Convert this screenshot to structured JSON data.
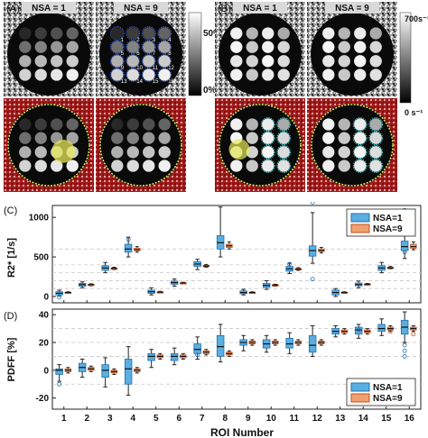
{
  "top": {
    "panel_a": {
      "label": "(A)",
      "title_left": "NSA = 1",
      "title_right": "NSA = 9",
      "cbar_max": "50%",
      "cbar_min": "0%",
      "roi_label": "ROI",
      "roi_numbers": [
        "1",
        "2",
        "3",
        "4",
        "5",
        "6",
        "7",
        "8",
        "9",
        "10",
        "11",
        "12",
        "13",
        "14",
        "15",
        "16"
      ]
    },
    "panel_b": {
      "label": "(B)",
      "title_left": "NSA = 1",
      "title_right": "NSA = 9",
      "cbar_max": "700s⁻¹",
      "cbar_min": "0 s⁻¹"
    }
  },
  "colors": {
    "nsa1_fill": "#5aaee0",
    "nsa1_edge": "#1f6fb0",
    "nsa9_fill": "#f0a070",
    "nsa9_edge": "#c0501f",
    "mask_red": "#a31a1a",
    "highlight_yellow": "#e5e85a",
    "highlight_cyan": "#3fc7c7"
  },
  "chart_data": [
    {
      "type": "box",
      "panel_label": "(C)",
      "xlabel": "",
      "ylabel": "R2* [1/s]",
      "ylim": [
        -80,
        1150
      ],
      "yticks": [
        0,
        500,
        1000
      ],
      "dashed_lines": [
        100,
        200,
        300,
        400,
        600
      ],
      "categories": [
        "1",
        "2",
        "3",
        "4",
        "5",
        "6",
        "7",
        "8",
        "9",
        "10",
        "11",
        "12",
        "13",
        "14",
        "15",
        "16"
      ],
      "legend": [
        "NSA=1",
        "NSA=9"
      ],
      "legend_position": "top-right",
      "series": [
        {
          "name": "NSA=1",
          "whisker_low": [
            5,
            110,
            300,
            500,
            20,
            130,
            340,
            500,
            20,
            90,
            290,
            420,
            0,
            110,
            300,
            480
          ],
          "q1": [
            20,
            130,
            330,
            560,
            40,
            155,
            380,
            600,
            35,
            115,
            320,
            510,
            20,
            135,
            330,
            580
          ],
          "median": [
            40,
            150,
            360,
            600,
            60,
            175,
            410,
            680,
            50,
            140,
            350,
            580,
            50,
            150,
            360,
            630
          ],
          "q3": [
            60,
            165,
            390,
            660,
            80,
            195,
            440,
            770,
            70,
            165,
            380,
            640,
            80,
            170,
            390,
            700
          ],
          "whisker_high": [
            80,
            185,
            430,
            750,
            110,
            220,
            470,
            1130,
            90,
            200,
            420,
            1060,
            100,
            195,
            430,
            1080
          ],
          "outliers": [
            [
              0,
              -10
            ],
            [
              3,
              720
            ],
            [
              10,
              410
            ],
            [
              11,
              1190
            ],
            [
              11,
              220
            ],
            [
              15,
              560
            ],
            [
              15,
              1090
            ]
          ]
        },
        {
          "name": "NSA=9",
          "whisker_low": [
            40,
            135,
            340,
            560,
            45,
            160,
            370,
            600,
            40,
            130,
            330,
            550,
            40,
            145,
            350,
            590
          ],
          "q1": [
            45,
            145,
            350,
            580,
            50,
            165,
            380,
            620,
            45,
            140,
            340,
            570,
            45,
            150,
            355,
            610
          ],
          "median": [
            50,
            150,
            355,
            590,
            55,
            170,
            385,
            640,
            50,
            145,
            345,
            580,
            50,
            155,
            360,
            630
          ],
          "q3": [
            55,
            155,
            360,
            610,
            60,
            175,
            395,
            660,
            55,
            150,
            355,
            600,
            55,
            160,
            370,
            660
          ],
          "whisker_high": [
            60,
            160,
            370,
            630,
            65,
            180,
            405,
            690,
            60,
            155,
            365,
            620,
            60,
            165,
            380,
            690
          ],
          "outliers": []
        }
      ]
    },
    {
      "type": "box",
      "panel_label": "(D)",
      "xlabel": "ROI Number",
      "ylabel": "PDFF [%]",
      "ylim": [
        -28,
        44
      ],
      "yticks": [
        -20,
        0,
        20,
        40
      ],
      "dashed_lines": [
        -10,
        10,
        20,
        30
      ],
      "categories": [
        "1",
        "2",
        "3",
        "4",
        "5",
        "6",
        "7",
        "8",
        "9",
        "10",
        "11",
        "12",
        "13",
        "14",
        "15",
        "16"
      ],
      "legend": [
        "NSA=1",
        "NSA=9"
      ],
      "legend_position": "bottom-right",
      "series": [
        {
          "name": "NSA=1",
          "whisker_low": [
            -8,
            -5,
            -12,
            -18,
            2,
            4,
            8,
            6,
            14,
            13,
            12,
            10,
            24,
            23,
            25,
            20
          ],
          "q1": [
            -3,
            -1,
            -5,
            -10,
            7,
            7,
            12,
            10,
            18,
            16,
            16,
            13,
            26,
            26,
            28,
            26
          ],
          "median": [
            0,
            2,
            0,
            1,
            10,
            10,
            15,
            17,
            20,
            19,
            19,
            18,
            28,
            29,
            30,
            31
          ],
          "q3": [
            1,
            5,
            4,
            8,
            12,
            12,
            19,
            25,
            22,
            22,
            23,
            25,
            30,
            31,
            33,
            36
          ],
          "whisker_high": [
            4,
            8,
            9,
            17,
            15,
            16,
            24,
            33,
            25,
            25,
            27,
            32,
            32,
            33,
            37,
            42
          ],
          "outliers": [
            [
              0,
              -10
            ],
            [
              6,
              11
            ],
            [
              13,
              29
            ],
            [
              15,
              10
            ],
            [
              15,
              14
            ],
            [
              15,
              18
            ]
          ]
        },
        {
          "name": "NSA=9",
          "whisker_low": [
            -2,
            -1,
            -3,
            -2,
            8,
            8,
            11,
            10,
            18,
            18,
            18,
            18,
            26,
            26,
            28,
            28
          ],
          "q1": [
            -1,
            0,
            -2,
            -1,
            9,
            9,
            12,
            11,
            19,
            19,
            19,
            19,
            27,
            27,
            29,
            29
          ],
          "median": [
            0,
            1,
            -1,
            0,
            10,
            10,
            13,
            12,
            20,
            20,
            20,
            20,
            28,
            28,
            30,
            30
          ],
          "q3": [
            1,
            2,
            0,
            1,
            11,
            11,
            14,
            13,
            21,
            21,
            21,
            21,
            29,
            29,
            31,
            31
          ],
          "whisker_high": [
            2,
            3,
            1,
            2,
            12,
            12,
            15,
            14,
            22,
            22,
            22,
            22,
            30,
            30,
            32,
            32
          ],
          "outliers": [
            [
              8,
              20
            ],
            [
              14,
              28
            ],
            [
              15,
              26
            ]
          ]
        }
      ]
    }
  ]
}
